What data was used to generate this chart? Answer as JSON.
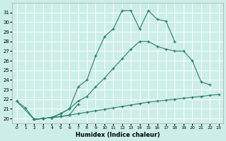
{
  "xlabel": "Humidex (Indice chaleur)",
  "background_color": "#cceee8",
  "grid_color": "#ffffff",
  "line_color": "#2e7d6e",
  "xlim": [
    -0.5,
    23.5
  ],
  "ylim": [
    19.5,
    32.0
  ],
  "yticks": [
    20,
    21,
    22,
    23,
    24,
    25,
    26,
    27,
    28,
    29,
    30,
    31
  ],
  "xticks": [
    0,
    1,
    2,
    3,
    4,
    5,
    6,
    7,
    8,
    9,
    10,
    11,
    12,
    13,
    14,
    15,
    16,
    17,
    18,
    19,
    20,
    21,
    22,
    23
  ],
  "series": [
    {
      "x": [
        0,
        1,
        2,
        3,
        4,
        5,
        6,
        7,
        8,
        9,
        10,
        11,
        12,
        13,
        14,
        15,
        16,
        17,
        18
      ],
      "y": [
        21.8,
        21.1,
        19.9,
        20.0,
        20.1,
        20.5,
        21.0,
        23.3,
        24.0,
        26.5,
        28.5,
        29.3,
        31.2,
        31.2,
        29.3,
        31.2,
        30.3,
        30.1,
        28.0
      ]
    },
    {
      "x": [
        2,
        3,
        4,
        5,
        6,
        7,
        8,
        9,
        10,
        11,
        12,
        13,
        14,
        15,
        16,
        17,
        18,
        19,
        20,
        21,
        22
      ],
      "y": [
        19.9,
        20.0,
        20.1,
        20.5,
        21.0,
        21.8,
        22.3,
        23.3,
        24.2,
        25.2,
        26.2,
        27.2,
        28.0,
        28.0,
        27.5,
        27.2,
        27.0,
        27.0,
        26.0,
        23.8,
        23.5
      ]
    },
    {
      "x": [
        2,
        3,
        4,
        5,
        6,
        7,
        8,
        9,
        10,
        11,
        12,
        13,
        14,
        15,
        16,
        17,
        18,
        19,
        20,
        21,
        22,
        23
      ],
      "y": [
        19.9,
        20.0,
        20.1,
        20.2,
        20.35,
        20.5,
        20.65,
        20.8,
        20.95,
        21.1,
        21.25,
        21.4,
        21.55,
        21.7,
        21.8,
        21.9,
        22.0,
        22.1,
        22.2,
        22.3,
        22.4,
        22.5
      ]
    },
    {
      "x": [
        0,
        2,
        3,
        4,
        5,
        6,
        7
      ],
      "y": [
        21.8,
        19.9,
        20.0,
        20.1,
        20.2,
        20.35,
        21.5
      ]
    }
  ]
}
